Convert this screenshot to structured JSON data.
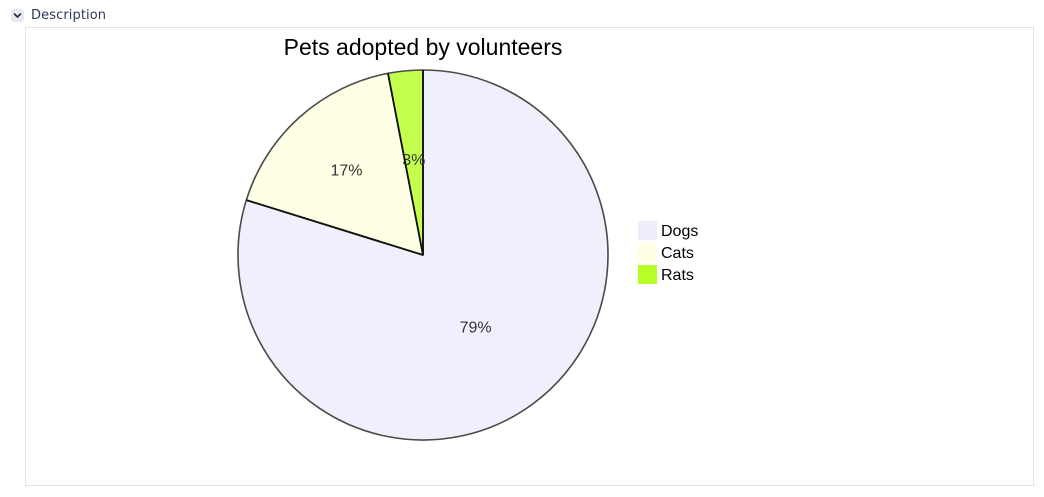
{
  "section": {
    "label": "Description",
    "icon": "chevron-down-icon"
  },
  "chart_data": {
    "type": "pie",
    "title": "Pets adopted by volunteers",
    "categories": [
      "Dogs",
      "Cats",
      "Rats"
    ],
    "values": [
      79,
      17,
      3
    ],
    "value_labels": [
      "79%",
      "17%",
      "3%"
    ],
    "colors": [
      "#f0f0fc",
      "#ffffe5",
      "#c4ff4d"
    ],
    "legend_colors": [
      "#ececfb",
      "#ffffe3",
      "#b6ff26"
    ],
    "start": "12 o'clock",
    "direction": "clockwise",
    "legend_position": "right"
  }
}
